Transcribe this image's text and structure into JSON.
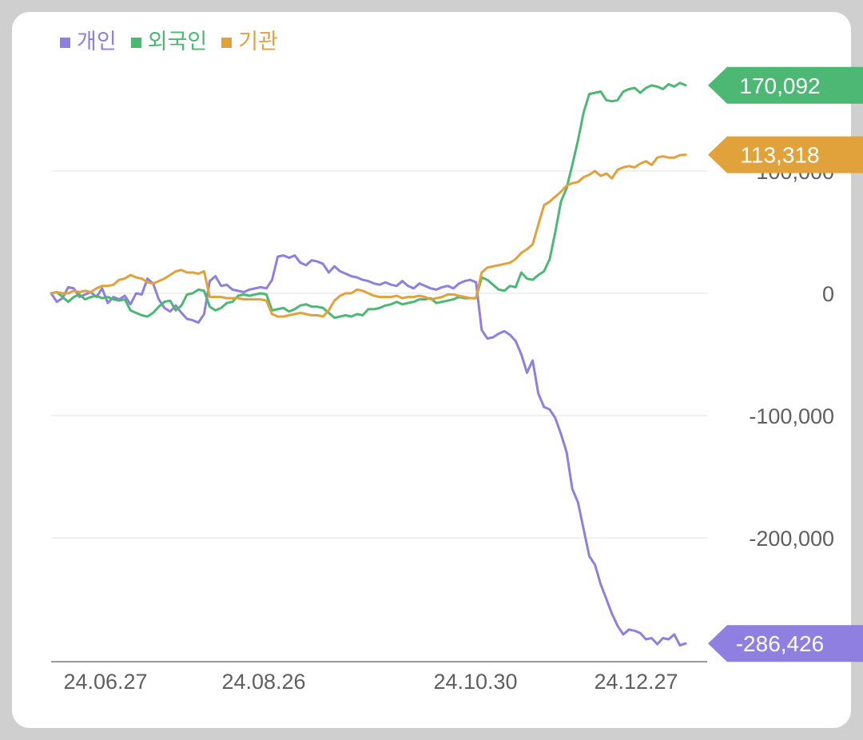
{
  "chart_data": {
    "type": "line",
    "x_ticks": [
      "24.06.27",
      "24.08.26",
      "24.10.30",
      "24.12.27"
    ],
    "y_ticks": [
      {
        "value": 100000,
        "label": "100,000"
      },
      {
        "value": 0,
        "label": "0"
      },
      {
        "value": -100000,
        "label": "-100,000"
      },
      {
        "value": -200000,
        "label": "-200,000"
      }
    ],
    "ylim": [
      -302000,
      188000
    ],
    "grid": true,
    "legend_position": "top-left",
    "series": [
      {
        "name": "개인",
        "color": "#8f7fe0",
        "last_label": "-286,426",
        "values": [
          0,
          -7000,
          -4000,
          5000,
          4000,
          -3000,
          -1000,
          1000,
          -3000,
          4000,
          -8000,
          -3000,
          -5000,
          -2000,
          -9000,
          0,
          -1000,
          12000,
          8000,
          -5000,
          -12000,
          -15000,
          -10000,
          -16000,
          -21000,
          -22000,
          -24000,
          -17000,
          10000,
          14000,
          6000,
          7000,
          3000,
          2000,
          1000,
          3000,
          4000,
          5000,
          4000,
          11000,
          30000,
          31000,
          29000,
          31000,
          25000,
          23000,
          27000,
          26000,
          24000,
          17000,
          22000,
          18000,
          16000,
          14000,
          13000,
          11000,
          10000,
          8000,
          7000,
          9000,
          7000,
          6000,
          10000,
          6000,
          4000,
          8000,
          6000,
          4000,
          3000,
          5000,
          6000,
          4000,
          8000,
          10000,
          11000,
          9000,
          -30000,
          -37000,
          -36000,
          -33000,
          -31000,
          -34000,
          -39000,
          -50000,
          -65000,
          -55000,
          -82000,
          -93000,
          -95000,
          -102000,
          -115000,
          -130000,
          -160000,
          -171000,
          -193000,
          -215000,
          -222000,
          -238000,
          -250000,
          -262000,
          -272000,
          -279000,
          -275000,
          -276000,
          -278000,
          -283000,
          -282000,
          -287000,
          -282000,
          -283000,
          -279000,
          -288000,
          -286426
        ]
      },
      {
        "name": "외국인",
        "color": "#4cb874",
        "last_label": "170,092",
        "values": [
          0,
          1000,
          -3000,
          -7000,
          -3000,
          -1000,
          -5000,
          -3000,
          -2000,
          -4000,
          -3000,
          -5000,
          -6000,
          -5000,
          -14000,
          -16000,
          -18000,
          -19000,
          -16000,
          -11000,
          -7000,
          -6000,
          -14000,
          -10000,
          -1000,
          0,
          3000,
          2000,
          -11000,
          -14000,
          -12000,
          -8000,
          -7000,
          -2000,
          -1000,
          -2000,
          -1000,
          0,
          -1000,
          -14000,
          -13000,
          -12000,
          -15000,
          -13000,
          -10000,
          -9000,
          -11000,
          -11000,
          -12000,
          -16000,
          -20000,
          -19000,
          -18000,
          -19000,
          -17000,
          -18000,
          -13000,
          -13000,
          -12000,
          -10000,
          -9000,
          -7000,
          -9000,
          -8000,
          -7000,
          -5000,
          -5000,
          -4000,
          -8000,
          -7000,
          -6000,
          -5000,
          -3000,
          -4000,
          -4000,
          -4000,
          13000,
          11000,
          7000,
          3000,
          2000,
          6000,
          5000,
          17000,
          12000,
          11000,
          15000,
          18000,
          28000,
          50000,
          75000,
          86000,
          105000,
          125000,
          148000,
          163000,
          164000,
          165000,
          158000,
          157000,
          158000,
          165000,
          167000,
          168000,
          164000,
          168000,
          170000,
          169000,
          167000,
          171000,
          169000,
          172000,
          170092
        ]
      },
      {
        "name": "기관",
        "color": "#e1a23c",
        "last_label": "113,318",
        "values": [
          0,
          1000,
          0,
          0,
          2000,
          1000,
          2000,
          1000,
          4000,
          6000,
          6000,
          7000,
          11000,
          12000,
          15000,
          13000,
          12000,
          9000,
          8000,
          10000,
          12000,
          15000,
          18000,
          19000,
          17000,
          17000,
          16000,
          18000,
          -3000,
          -3000,
          -3000,
          -4000,
          -4000,
          -4000,
          -5000,
          -5000,
          -5000,
          -5000,
          -6000,
          -17000,
          -19000,
          -19000,
          -18000,
          -17000,
          -16000,
          -17000,
          -18000,
          -18000,
          -19000,
          -14000,
          -6000,
          -2000,
          0,
          0,
          3000,
          2000,
          0,
          -2000,
          -3000,
          -3000,
          -3000,
          -2000,
          -4000,
          -3000,
          -3000,
          -2000,
          -3000,
          -5000,
          -4000,
          -3000,
          -1000,
          -1000,
          -2000,
          -3000,
          -4000,
          -4000,
          17000,
          21000,
          22000,
          23000,
          24000,
          25000,
          28000,
          33000,
          36000,
          40000,
          56000,
          72000,
          75000,
          79000,
          83000,
          88000,
          90000,
          91000,
          95000,
          97000,
          100000,
          96000,
          98000,
          94000,
          101000,
          103000,
          104000,
          103000,
          106000,
          108000,
          105000,
          111000,
          112000,
          111000,
          111000,
          113000,
          113318
        ]
      }
    ]
  }
}
